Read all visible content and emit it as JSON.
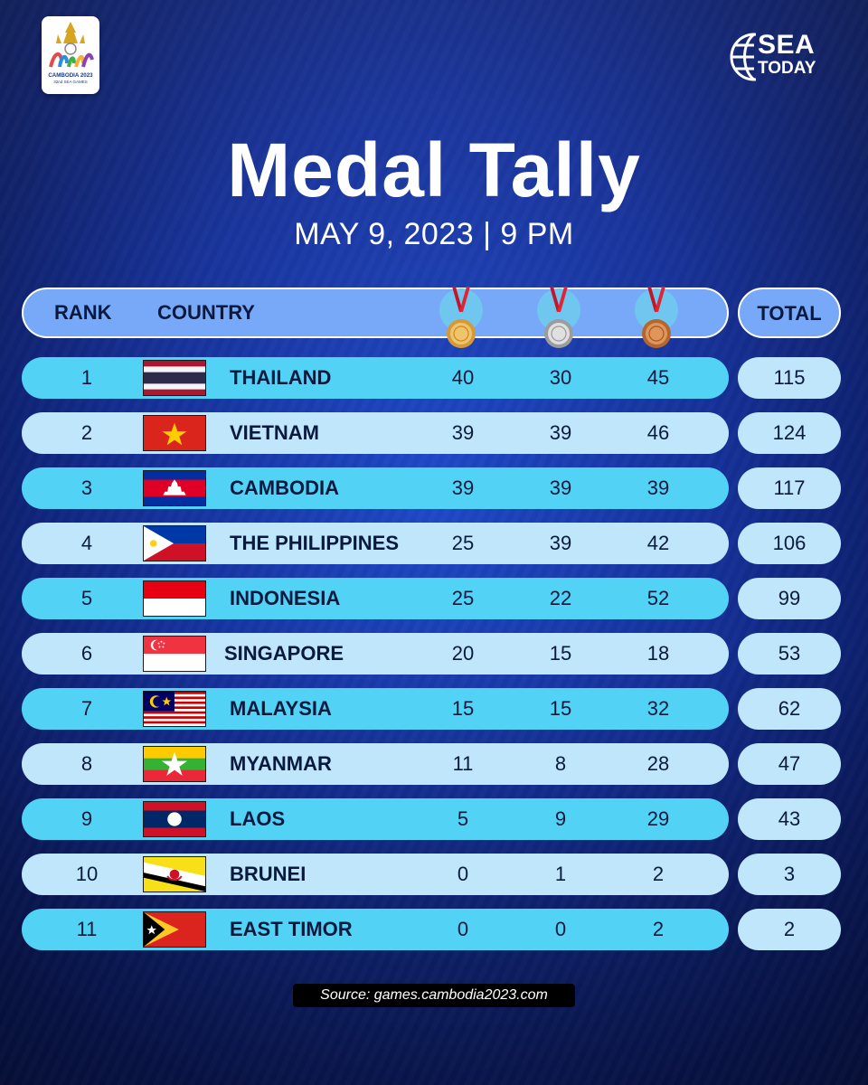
{
  "header": {
    "event_logo_text": "CAMBODIA 2023",
    "event_logo_sub": "32nd SEA GAMES",
    "brand_line1": "SEA",
    "brand_line2": "TODAY",
    "title": "Medal Tally",
    "subtitle": "MAY 9, 2023 | 9 PM"
  },
  "table": {
    "columns": {
      "rank": "RANK",
      "country": "COUNTRY",
      "total": "TOTAL",
      "gold_icon": "gold-medal-icon",
      "silver_icon": "silver-medal-icon",
      "bronze_icon": "bronze-medal-icon"
    },
    "rows": [
      {
        "rank": "1",
        "country": "THAILAND",
        "flag": "thailand-flag-icon",
        "gold": "40",
        "silver": "30",
        "bronze": "45",
        "total": "115"
      },
      {
        "rank": "2",
        "country": "VIETNAM",
        "flag": "vietnam-flag-icon",
        "gold": "39",
        "silver": "39",
        "bronze": "46",
        "total": "124"
      },
      {
        "rank": "3",
        "country": "CAMBODIA",
        "flag": "cambodia-flag-icon",
        "gold": "39",
        "silver": "39",
        "bronze": "39",
        "total": "117"
      },
      {
        "rank": "4",
        "country": "THE PHILIPPINES",
        "flag": "philippines-flag-icon",
        "gold": "25",
        "silver": "39",
        "bronze": "42",
        "total": "106"
      },
      {
        "rank": "5",
        "country": "INDONESIA",
        "flag": "indonesia-flag-icon",
        "gold": "25",
        "silver": "22",
        "bronze": "52",
        "total": "99"
      },
      {
        "rank": "6",
        "country": "SINGAPORE",
        "flag": "singapore-flag-icon",
        "gold": "20",
        "silver": "15",
        "bronze": "18",
        "total": "53"
      },
      {
        "rank": "7",
        "country": "MALAYSIA",
        "flag": "malaysia-flag-icon",
        "gold": "15",
        "silver": "15",
        "bronze": "32",
        "total": "62"
      },
      {
        "rank": "8",
        "country": "MYANMAR",
        "flag": "myanmar-flag-icon",
        "gold": "11",
        "silver": "8",
        "bronze": "28",
        "total": "47"
      },
      {
        "rank": "9",
        "country": "LAOS",
        "flag": "laos-flag-icon",
        "gold": "5",
        "silver": "9",
        "bronze": "29",
        "total": "43"
      },
      {
        "rank": "10",
        "country": "BRUNEI",
        "flag": "brunei-flag-icon",
        "gold": "0",
        "silver": "1",
        "bronze": "2",
        "total": "3"
      },
      {
        "rank": "11",
        "country": "EAST TIMOR",
        "flag": "east-timor-flag-icon",
        "gold": "0",
        "silver": "0",
        "bronze": "2",
        "total": "2"
      }
    ]
  },
  "footer": {
    "source": "Source: games.cambodia2023.com"
  },
  "colors": {
    "background": "#1a3fb0",
    "row_cyan": "#52d3f5",
    "row_light": "#bfe6fb",
    "header_blue": "#78a8f8",
    "text_dark": "#0a1a3e"
  }
}
